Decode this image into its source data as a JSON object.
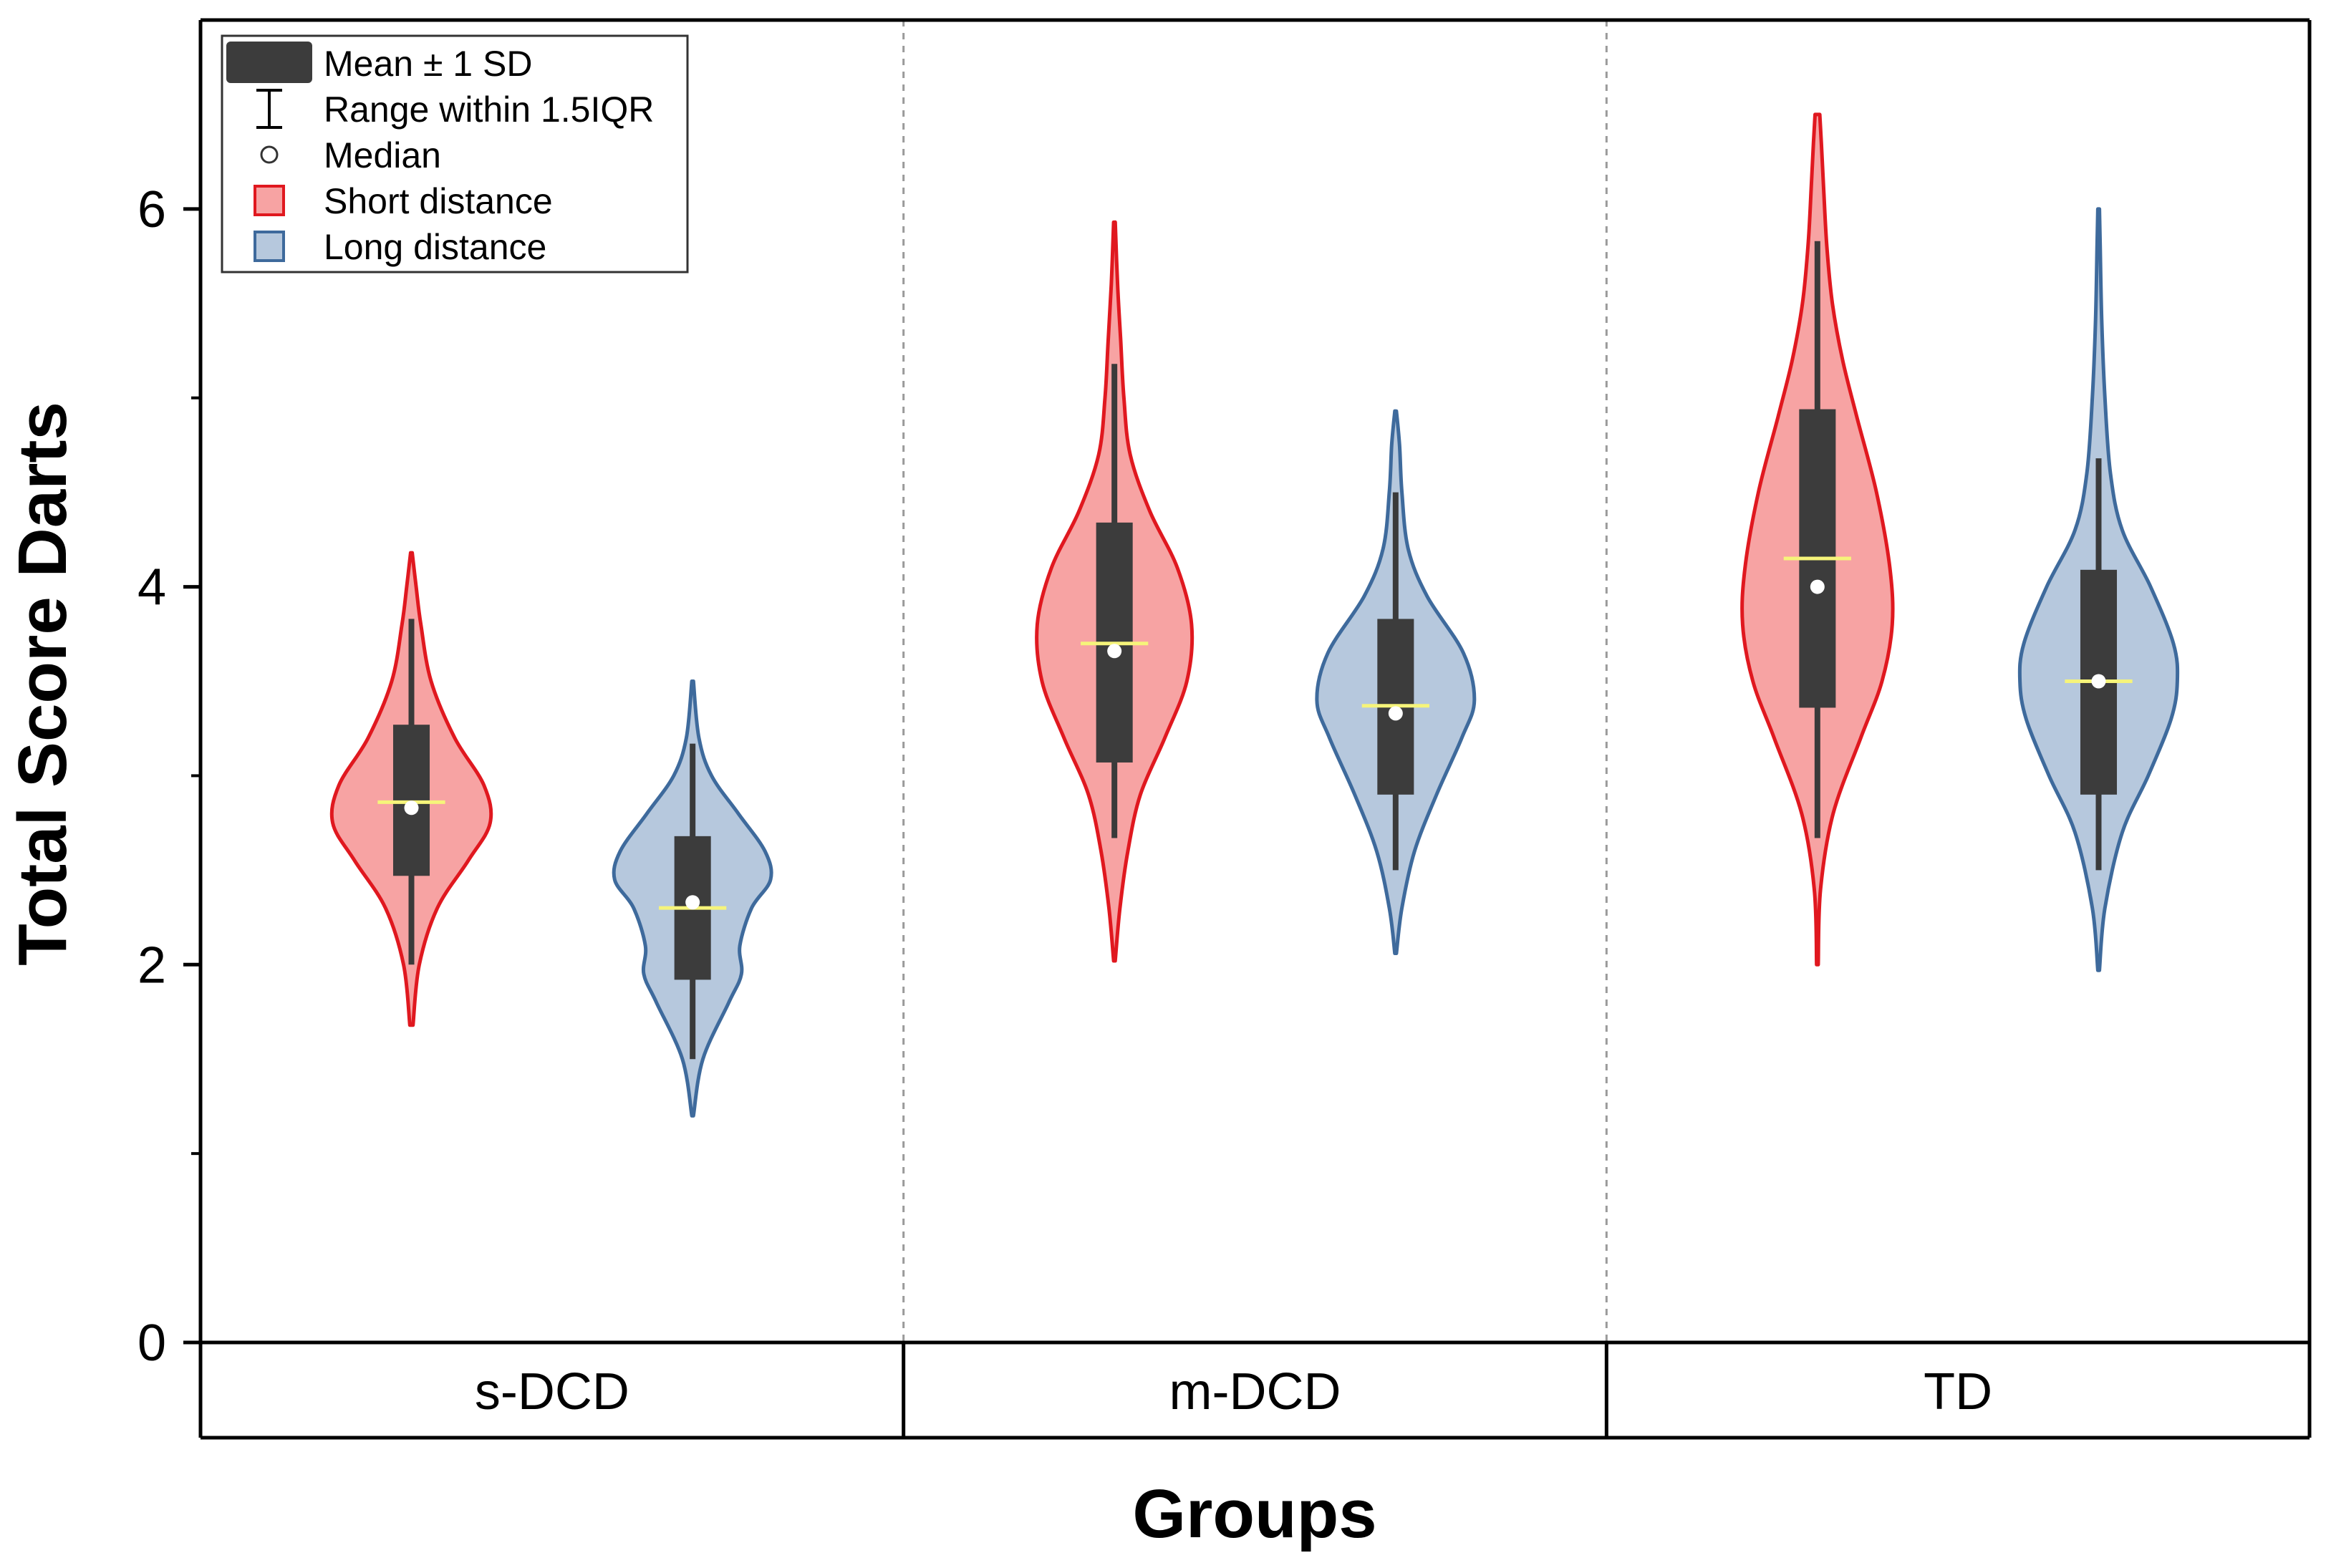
{
  "chart_data": {
    "type": "violin",
    "xlabel": "Groups",
    "ylabel": "Total Score Darts",
    "ylim": [
      0,
      7
    ],
    "yticks": [
      "0",
      "2",
      "4",
      "6"
    ],
    "grid": false,
    "groups": [
      "s-DCD",
      "m-DCD",
      "TD"
    ],
    "legend": {
      "position": "top-left",
      "entries": [
        {
          "label": "Mean ± 1 SD",
          "symbol": "box"
        },
        {
          "label": "Range within 1.5IQR",
          "symbol": "whisker"
        },
        {
          "label": "Median",
          "symbol": "circle"
        },
        {
          "label": "Short distance",
          "symbol": "fill-short"
        },
        {
          "label": "Long distance",
          "symbol": "fill-long"
        }
      ]
    },
    "series": [
      {
        "name": "Short distance",
        "fill": "#f7a3a3",
        "stroke": "#e0181f",
        "violins": [
          {
            "group": "s-DCD",
            "mean": 2.86,
            "sd_low": 2.47,
            "sd_high": 3.27,
            "median": 2.83,
            "whisker_low": 2.0,
            "whisker_high": 3.83,
            "min": 1.68,
            "max": 4.18,
            "density": [
              [
                1.68,
                0.02
              ],
              [
                2.0,
                0.1
              ],
              [
                2.3,
                0.33
              ],
              [
                2.55,
                0.72
              ],
              [
                2.75,
                1.0
              ],
              [
                2.95,
                0.92
              ],
              [
                3.2,
                0.55
              ],
              [
                3.5,
                0.25
              ],
              [
                3.8,
                0.12
              ],
              [
                4.0,
                0.06
              ],
              [
                4.18,
                0.01
              ]
            ]
          },
          {
            "group": "m-DCD",
            "mean": 3.7,
            "sd_low": 3.07,
            "sd_high": 4.34,
            "median": 3.66,
            "whisker_low": 2.67,
            "whisker_high": 5.18,
            "min": 2.02,
            "max": 5.93,
            "density": [
              [
                2.02,
                0.01
              ],
              [
                2.3,
                0.07
              ],
              [
                2.6,
                0.17
              ],
              [
                2.9,
                0.33
              ],
              [
                3.2,
                0.64
              ],
              [
                3.5,
                0.92
              ],
              [
                3.8,
                0.98
              ],
              [
                4.1,
                0.8
              ],
              [
                4.4,
                0.45
              ],
              [
                4.7,
                0.2
              ],
              [
                5.0,
                0.12
              ],
              [
                5.3,
                0.08
              ],
              [
                5.6,
                0.04
              ],
              [
                5.93,
                0.01
              ]
            ]
          },
          {
            "group": "TD",
            "mean": 4.15,
            "sd_low": 3.36,
            "sd_high": 4.94,
            "median": 4.0,
            "whisker_low": 2.67,
            "whisker_high": 5.83,
            "min": 2.0,
            "max": 6.5,
            "density": [
              [
                2.0,
                0.01
              ],
              [
                2.4,
                0.04
              ],
              [
                2.8,
                0.2
              ],
              [
                3.2,
                0.55
              ],
              [
                3.5,
                0.82
              ],
              [
                3.8,
                0.95
              ],
              [
                4.1,
                0.92
              ],
              [
                4.5,
                0.75
              ],
              [
                4.9,
                0.5
              ],
              [
                5.2,
                0.32
              ],
              [
                5.5,
                0.19
              ],
              [
                5.8,
                0.12
              ],
              [
                6.1,
                0.08
              ],
              [
                6.35,
                0.05
              ],
              [
                6.5,
                0.03
              ]
            ]
          }
        ]
      },
      {
        "name": "Long distance",
        "fill": "#b6c8dd",
        "stroke": "#3e6a9c",
        "violins": [
          {
            "group": "s-DCD",
            "mean": 2.3,
            "sd_low": 1.92,
            "sd_high": 2.68,
            "median": 2.33,
            "whisker_low": 1.5,
            "whisker_high": 3.17,
            "min": 1.2,
            "max": 3.5,
            "density": [
              [
                1.2,
                0.01
              ],
              [
                1.5,
                0.13
              ],
              [
                1.8,
                0.46
              ],
              [
                1.95,
                0.62
              ],
              [
                2.1,
                0.6
              ],
              [
                2.3,
                0.75
              ],
              [
                2.45,
                0.99
              ],
              [
                2.6,
                0.92
              ],
              [
                2.8,
                0.58
              ],
              [
                3.0,
                0.24
              ],
              [
                3.2,
                0.08
              ],
              [
                3.5,
                0.01
              ]
            ]
          },
          {
            "group": "m-DCD",
            "mean": 3.37,
            "sd_low": 2.9,
            "sd_high": 3.83,
            "median": 3.33,
            "whisker_low": 2.5,
            "whisker_high": 4.5,
            "min": 2.06,
            "max": 4.93,
            "density": [
              [
                2.06,
                0.01
              ],
              [
                2.3,
                0.08
              ],
              [
                2.6,
                0.24
              ],
              [
                2.9,
                0.52
              ],
              [
                3.2,
                0.84
              ],
              [
                3.4,
                1.0
              ],
              [
                3.65,
                0.86
              ],
              [
                3.95,
                0.4
              ],
              [
                4.2,
                0.16
              ],
              [
                4.5,
                0.08
              ],
              [
                4.75,
                0.05
              ],
              [
                4.93,
                0.01
              ]
            ]
          },
          {
            "group": "TD",
            "mean": 3.5,
            "sd_low": 2.9,
            "sd_high": 4.09,
            "median": 3.5,
            "whisker_low": 2.5,
            "whisker_high": 4.68,
            "min": 1.97,
            "max": 6.0,
            "density": [
              [
                1.97,
                0.01
              ],
              [
                2.3,
                0.08
              ],
              [
                2.7,
                0.3
              ],
              [
                3.0,
                0.63
              ],
              [
                3.3,
                0.92
              ],
              [
                3.5,
                1.0
              ],
              [
                3.7,
                0.95
              ],
              [
                4.0,
                0.66
              ],
              [
                4.3,
                0.3
              ],
              [
                4.6,
                0.15
              ],
              [
                5.0,
                0.08
              ],
              [
                5.4,
                0.04
              ],
              [
                5.8,
                0.02
              ],
              [
                6.0,
                0.01
              ]
            ]
          }
        ]
      }
    ]
  }
}
